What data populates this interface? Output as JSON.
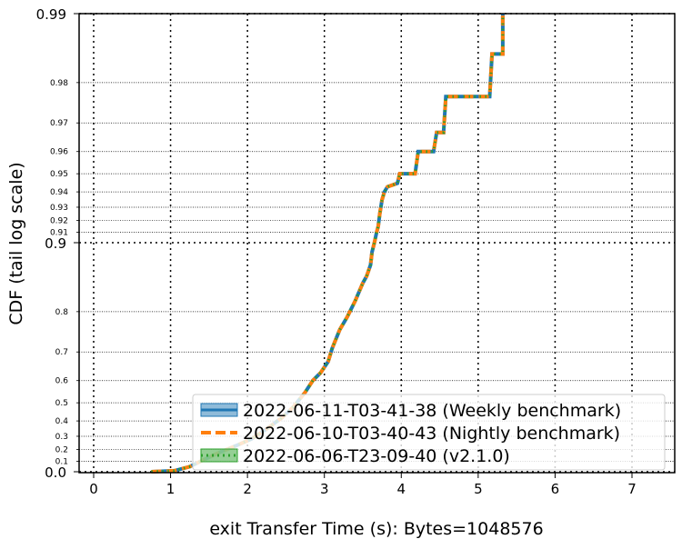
{
  "chart_data": {
    "type": "line",
    "title": "",
    "xlabel": "exit Transfer Time (s): Bytes=1048576",
    "ylabel": "CDF (tail log scale)",
    "xlim": [
      -0.2,
      7.55
    ],
    "x_ticks": [
      "0",
      "1",
      "2",
      "3",
      "4",
      "5",
      "6",
      "7"
    ],
    "y_scale": "tail-log",
    "y_major_ticks": [
      "0.0",
      "0.9",
      "0.99"
    ],
    "y_minor_ticks": [
      "0.1",
      "0.2",
      "0.3",
      "0.4",
      "0.5",
      "0.6",
      "0.7",
      "0.8",
      "0.91",
      "0.92",
      "0.93",
      "0.94",
      "0.95",
      "0.96",
      "0.97",
      "0.98"
    ],
    "grid": true,
    "legend_position": "lower-right",
    "series": [
      {
        "name": "2022-06-11-T03-41-38 (Weekly benchmark)",
        "color": "#1f77b4",
        "style": "solid"
      },
      {
        "name": "2022-06-10-T03-40-43 (Nightly benchmark)",
        "color": "#ff7f0e",
        "style": "dashed"
      },
      {
        "name": "2022-06-06-T23-09-40 (v2.1.0)",
        "color": "#2ca02c",
        "style": "dotted"
      }
    ],
    "curve": {
      "x": [
        0.75,
        1.05,
        1.25,
        1.45,
        1.65,
        1.85,
        2.05,
        2.25,
        2.45,
        2.6,
        2.75,
        2.85,
        2.95,
        3.05,
        3.1,
        3.2,
        3.3,
        3.4,
        3.5,
        3.55,
        3.6,
        3.62,
        3.65,
        3.68,
        3.7,
        3.72,
        3.75,
        3.78,
        3.82,
        3.95,
        3.98,
        4.18,
        4.22,
        4.42,
        4.46,
        4.55,
        4.58,
        5.15,
        5.18,
        5.32,
        5.32
      ],
      "y": [
        0.0,
        0.01,
        0.05,
        0.12,
        0.18,
        0.23,
        0.28,
        0.35,
        0.42,
        0.48,
        0.55,
        0.6,
        0.63,
        0.67,
        0.71,
        0.76,
        0.79,
        0.82,
        0.85,
        0.86,
        0.875,
        0.89,
        0.9,
        0.91,
        0.915,
        0.925,
        0.935,
        0.94,
        0.943,
        0.945,
        0.95,
        0.95,
        0.96,
        0.96,
        0.967,
        0.967,
        0.977,
        0.977,
        0.985,
        0.985,
        0.99
      ]
    }
  }
}
